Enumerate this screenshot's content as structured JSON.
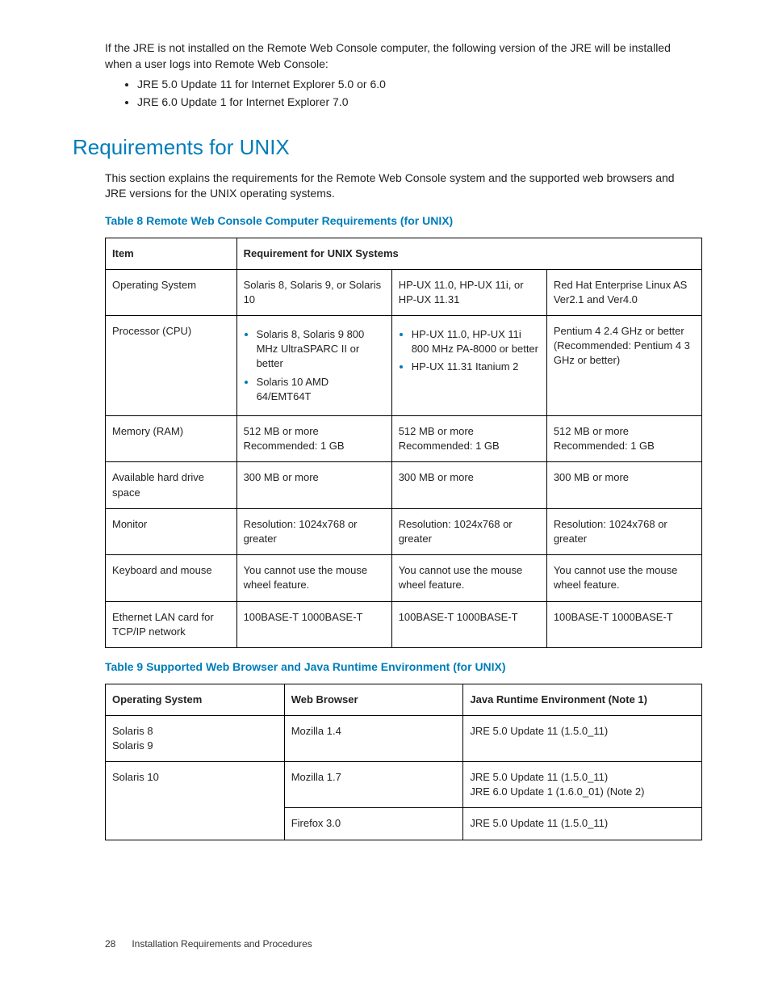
{
  "intro": "If the JRE is not installed on the Remote Web Console computer, the following version of the JRE will be installed when a user logs into Remote Web Console:",
  "bullets": [
    "JRE 5.0 Update 11 for Internet Explorer 5.0 or 6.0",
    "JRE 6.0 Update 1 for Internet Explorer 7.0"
  ],
  "section_heading": "Requirements for UNIX",
  "section_text": "This section explains the requirements for the Remote Web Console system and the supported web browsers and JRE versions for the UNIX operating systems.",
  "table8": {
    "caption": "Table 8 Remote Web Console Computer Requirements (for UNIX)",
    "headers": [
      "Item",
      "Requirement for UNIX Systems"
    ],
    "col_widths": [
      "22%",
      "26%",
      "26%",
      "26%"
    ],
    "rows": [
      {
        "item": "Operating System",
        "c1": "Solaris 8, Solaris 9, or Solaris 10",
        "c2": "HP-UX 11.0, HP-UX 11i, or HP-UX 11.31",
        "c3": "Red Hat Enterprise Linux AS Ver2.1 and Ver4.0"
      },
      {
        "item": "Processor (CPU)",
        "c1_list": [
          "Solaris 8, Solaris 9 800 MHz UltraSPARC II or better",
          "Solaris 10 AMD 64/EMT64T"
        ],
        "c2_list": [
          "HP-UX 11.0, HP-UX 11i\n800 MHz PA-8000 or better",
          "HP-UX 11.31 Itanium 2"
        ],
        "c3": "Pentium 4 2.4 GHz or better (Recommended: Pentium 4 3 GHz or better)"
      },
      {
        "item": "Memory (RAM)",
        "c1": "512 MB or more\nRecommended: 1 GB",
        "c2": "512 MB or more\nRecommended: 1 GB",
        "c3": "512 MB or more\nRecommended: 1 GB"
      },
      {
        "item": "Available hard drive space",
        "c1": "300 MB or more",
        "c2": "300 MB or more",
        "c3": "300 MB or more"
      },
      {
        "item": "Monitor",
        "c1": "Resolution: 1024x768 or greater",
        "c2": "Resolution: 1024x768 or greater",
        "c3": "Resolution: 1024x768 or greater"
      },
      {
        "item": "Keyboard and mouse",
        "c1": "You cannot use the mouse wheel feature.",
        "c2": "You cannot use the mouse wheel feature.",
        "c3": "You cannot use the mouse wheel feature."
      },
      {
        "item": "Ethernet LAN card for TCP/IP network",
        "c1": "100BASE-T 1000BASE-T",
        "c2": "100BASE-T 1000BASE-T",
        "c3": "100BASE-T 1000BASE-T"
      }
    ]
  },
  "table9": {
    "caption": "Table 9 Supported Web Browser and Java Runtime Environment (for UNIX)",
    "headers": [
      "Operating System",
      "Web Browser",
      "Java Runtime Environment (Note 1)"
    ],
    "col_widths": [
      "30%",
      "30%",
      "40%"
    ],
    "rows": [
      {
        "os": "Solaris 8\nSolaris 9",
        "browser": "Mozilla 1.4",
        "jre": "JRE 5.0 Update 11 (1.5.0_11)"
      },
      {
        "os": "Solaris 10",
        "os_rowspan": 2,
        "browser": "Mozilla 1.7",
        "jre": "JRE 5.0 Update 11 (1.5.0_11)\nJRE 6.0 Update 1 (1.6.0_01) (Note 2)"
      },
      {
        "browser": "Firefox 3.0",
        "jre": "JRE 5.0 Update 11 (1.5.0_11)"
      }
    ]
  },
  "footer": {
    "page": "28",
    "title": "Installation Requirements and Procedures"
  }
}
